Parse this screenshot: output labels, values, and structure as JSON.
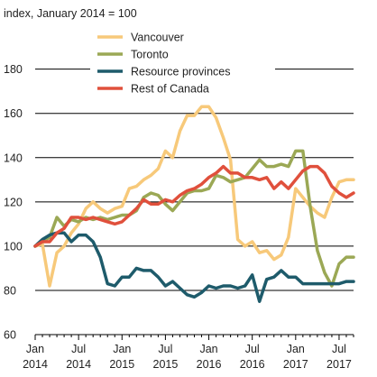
{
  "chart_data": {
    "type": "line",
    "unit_label": "index, January 2014 = 100",
    "x": [
      "2014-01",
      "2014-02",
      "2014-03",
      "2014-04",
      "2014-05",
      "2014-06",
      "2014-07",
      "2014-08",
      "2014-09",
      "2014-10",
      "2014-11",
      "2014-12",
      "2015-01",
      "2015-02",
      "2015-03",
      "2015-04",
      "2015-05",
      "2015-06",
      "2015-07",
      "2015-08",
      "2015-09",
      "2015-10",
      "2015-11",
      "2015-12",
      "2016-01",
      "2016-02",
      "2016-03",
      "2016-04",
      "2016-05",
      "2016-06",
      "2016-07",
      "2016-08",
      "2016-09",
      "2016-10",
      "2016-11",
      "2016-12",
      "2017-01",
      "2017-02",
      "2017-03",
      "2017-04",
      "2017-05",
      "2017-06",
      "2017-07",
      "2017-08",
      "2017-09"
    ],
    "series": [
      {
        "name": "Vancouver",
        "color": "#F7C97A",
        "values": [
          100,
          101,
          82,
          97,
          100,
          106,
          110,
          117,
          120,
          117,
          115,
          117,
          118,
          126,
          127,
          130,
          132,
          135,
          143,
          140,
          152,
          159,
          159,
          163,
          163,
          158,
          149,
          139,
          103,
          100,
          102,
          97,
          98,
          94,
          96,
          104,
          126,
          122,
          118,
          115,
          113,
          122,
          129,
          130,
          130
        ]
      },
      {
        "name": "Toronto",
        "color": "#9BA855",
        "values": [
          100,
          102,
          104,
          113,
          109,
          112,
          111,
          113,
          112,
          113,
          112,
          113,
          114,
          114,
          116,
          122,
          124,
          123,
          119,
          116,
          120,
          124,
          125,
          125,
          126,
          132,
          131,
          129,
          130,
          131,
          135,
          139,
          136,
          136,
          137,
          136,
          143,
          143,
          118,
          98,
          88,
          82,
          92,
          95,
          95
        ]
      },
      {
        "name": "Resource provinces",
        "color": "#1E5B6B",
        "values": [
          100,
          103,
          105,
          106,
          106,
          102,
          105,
          105,
          102,
          95,
          83,
          82,
          86,
          86,
          90,
          89,
          89,
          86,
          82,
          84,
          81,
          78,
          77,
          79,
          82,
          81,
          82,
          82,
          81,
          82,
          87,
          75,
          85,
          86,
          89,
          86,
          86,
          83,
          83,
          83,
          83,
          83,
          83,
          84,
          84
        ]
      },
      {
        "name": "Rest of Canada",
        "color": "#E0503C",
        "values": [
          100,
          102,
          102,
          106,
          108,
          113,
          113,
          112,
          113,
          112,
          111,
          110,
          111,
          114,
          117,
          121,
          119,
          119,
          121,
          120,
          123,
          125,
          126,
          128,
          131,
          133,
          136,
          133,
          133,
          131,
          131,
          130,
          131,
          126,
          129,
          126,
          130,
          134,
          136,
          136,
          133,
          127,
          124,
          122,
          124
        ]
      }
    ],
    "y_ticks": [
      60,
      80,
      100,
      120,
      140,
      160,
      180
    ],
    "ylim": [
      60,
      188
    ],
    "x_ticks": [
      {
        "month": "Jan",
        "year": "2014",
        "index": 0
      },
      {
        "month": "Jul",
        "year": "2014",
        "index": 6
      },
      {
        "month": "Jan",
        "year": "2015",
        "index": 12
      },
      {
        "month": "Jul",
        "year": "2015",
        "index": 18
      },
      {
        "month": "Jan",
        "year": "2016",
        "index": 24
      },
      {
        "month": "Jul",
        "year": "2016",
        "index": 30
      },
      {
        "month": "Jan",
        "year": "2017",
        "index": 36
      },
      {
        "month": "Jul",
        "year": "2017",
        "index": 42
      }
    ],
    "grid": true,
    "legend_position": "top-center"
  }
}
